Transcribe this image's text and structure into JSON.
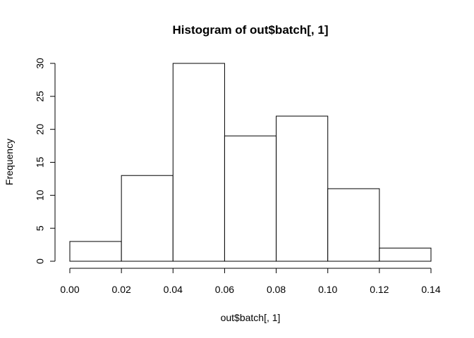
{
  "chart_data": {
    "type": "bar",
    "title": "Histogram of out$batch[, 1]",
    "xlabel": "out$batch[, 1]",
    "ylabel": "Frequency",
    "bin_edges": [
      0.0,
      0.02,
      0.04,
      0.06,
      0.08,
      0.1,
      0.12,
      0.14
    ],
    "values": [
      3,
      13,
      30,
      19,
      22,
      11,
      2
    ],
    "xlim": [
      0.0,
      0.14
    ],
    "ylim": [
      0,
      30
    ],
    "x_ticks": [
      "0.00",
      "0.02",
      "0.04",
      "0.06",
      "0.08",
      "0.10",
      "0.12",
      "0.14"
    ],
    "y_ticks": [
      "0",
      "5",
      "10",
      "15",
      "20",
      "25",
      "30"
    ],
    "grid": false,
    "bar_fill": "#ffffff",
    "bar_stroke": "#000000"
  }
}
